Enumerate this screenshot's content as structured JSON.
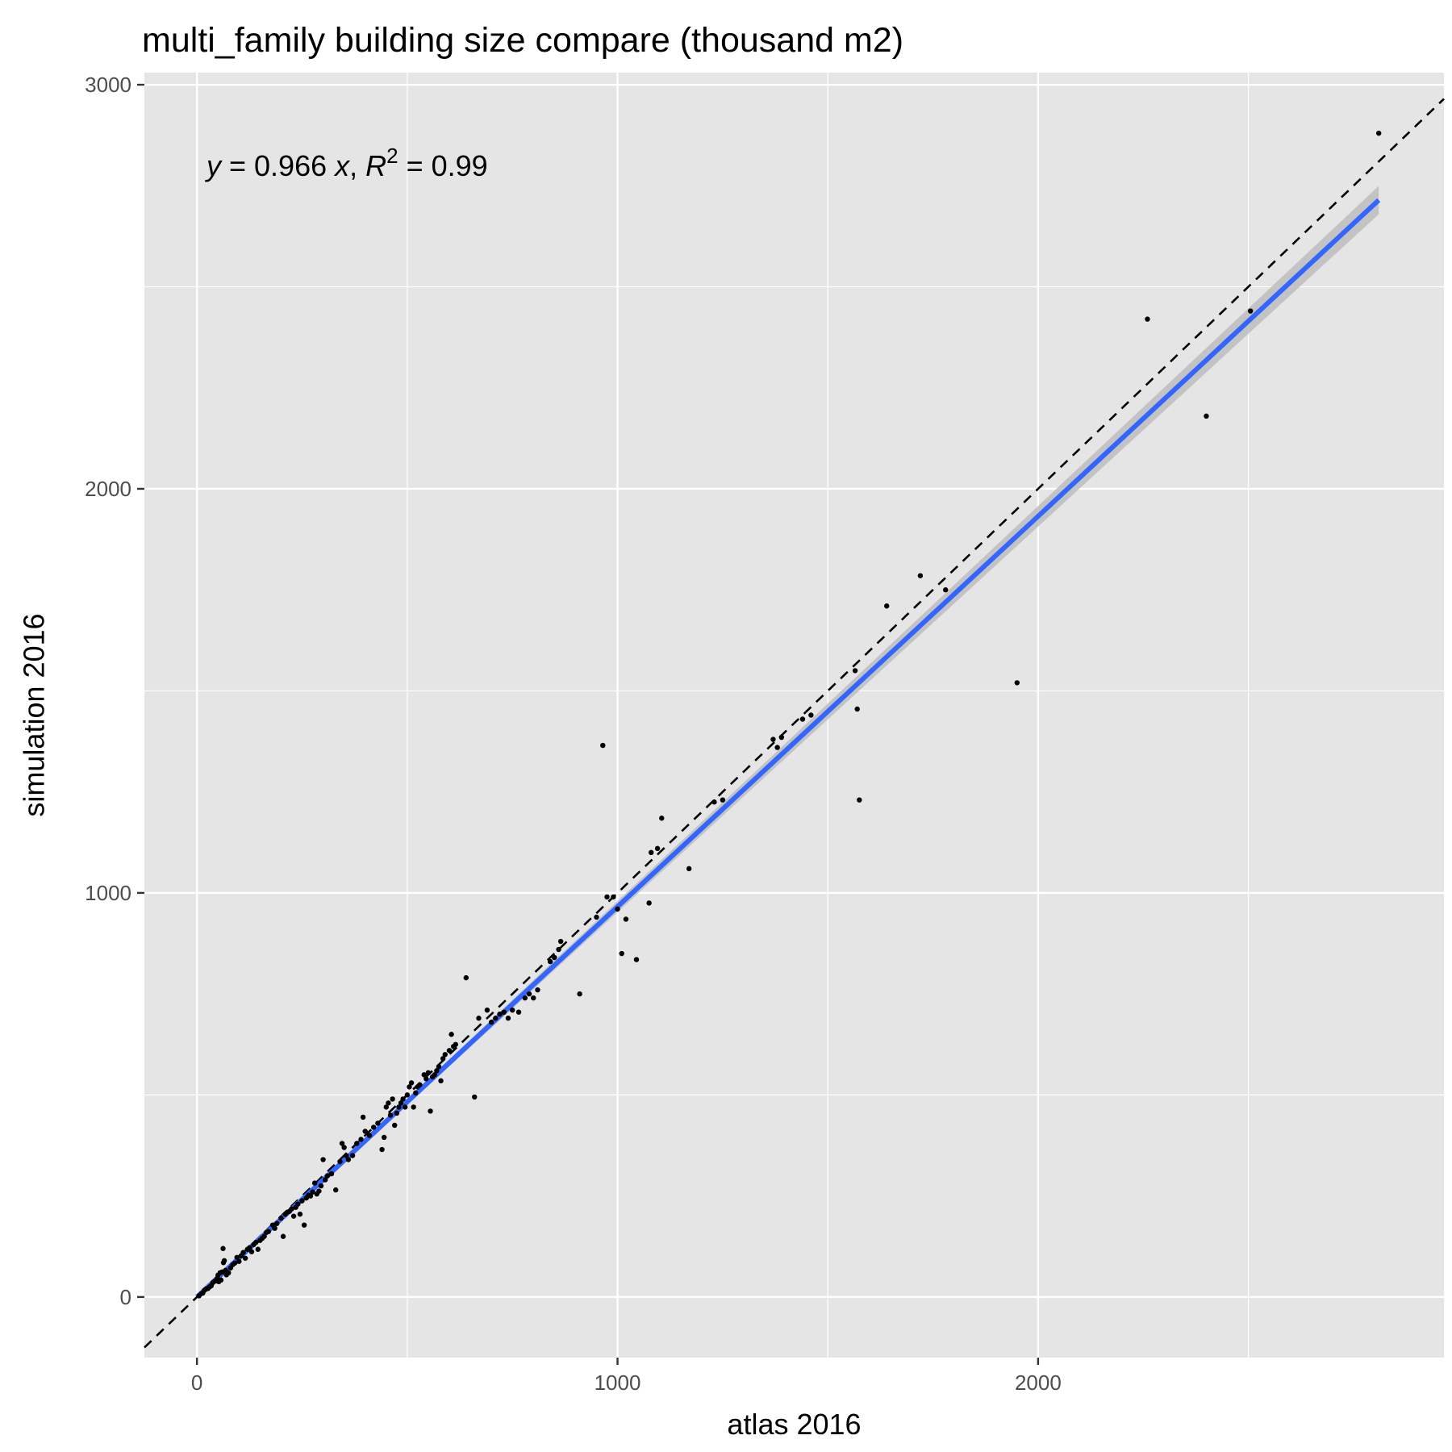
{
  "chart_data": {
    "type": "scatter",
    "title": "multi_family building size compare (thousand m2)",
    "xlabel": "atlas 2016",
    "ylabel": "simulation 2016",
    "xlim": [
      -125,
      2965
    ],
    "ylim": [
      -150,
      3030
    ],
    "x_ticks": [
      0,
      1000,
      2000
    ],
    "y_ticks": [
      0,
      1000,
      2000,
      3000
    ],
    "grid": true,
    "background": "#e5e5e5",
    "equation": {
      "y": "y",
      "eq_mid": " = 0.966 ",
      "x": "x",
      "sep": ", ",
      "R": "R",
      "sup": "2",
      "tail": " = 0.99"
    },
    "fit": {
      "slope": 0.966,
      "r2": 0.99,
      "x_range": [
        0,
        2810
      ],
      "band_halfwidth": [
        2,
        35
      ],
      "color": "#3366ff",
      "band_color": "#bdbdbd"
    },
    "reference_line": {
      "slope": 1,
      "style": "dashed",
      "color": "#000000"
    },
    "points": [
      [
        5,
        3
      ],
      [
        10,
        8
      ],
      [
        14,
        10
      ],
      [
        18,
        17
      ],
      [
        22,
        20
      ],
      [
        26,
        21
      ],
      [
        30,
        25
      ],
      [
        34,
        28
      ],
      [
        38,
        36
      ],
      [
        42,
        39
      ],
      [
        45,
        40
      ],
      [
        48,
        46
      ],
      [
        50,
        54
      ],
      [
        52,
        38
      ],
      [
        55,
        60
      ],
      [
        57,
        42
      ],
      [
        60,
        62
      ],
      [
        62,
        120
      ],
      [
        63,
        85
      ],
      [
        65,
        90
      ],
      [
        68,
        66
      ],
      [
        70,
        55
      ],
      [
        75,
        60
      ],
      [
        80,
        72
      ],
      [
        85,
        80
      ],
      [
        90,
        84
      ],
      [
        95,
        98
      ],
      [
        100,
        88
      ],
      [
        105,
        102
      ],
      [
        110,
        110
      ],
      [
        115,
        96
      ],
      [
        120,
        118
      ],
      [
        125,
        122
      ],
      [
        130,
        112
      ],
      [
        135,
        130
      ],
      [
        140,
        135
      ],
      [
        145,
        118
      ],
      [
        150,
        140
      ],
      [
        155,
        145
      ],
      [
        160,
        150
      ],
      [
        165,
        160
      ],
      [
        170,
        162
      ],
      [
        180,
        178
      ],
      [
        185,
        170
      ],
      [
        190,
        182
      ],
      [
        200,
        195
      ],
      [
        205,
        150
      ],
      [
        210,
        205
      ],
      [
        215,
        210
      ],
      [
        220,
        212
      ],
      [
        225,
        218
      ],
      [
        230,
        200
      ],
      [
        235,
        222
      ],
      [
        240,
        230
      ],
      [
        245,
        205
      ],
      [
        250,
        238
      ],
      [
        255,
        178
      ],
      [
        260,
        245
      ],
      [
        265,
        252
      ],
      [
        270,
        250
      ],
      [
        275,
        260
      ],
      [
        280,
        282
      ],
      [
        285,
        255
      ],
      [
        290,
        262
      ],
      [
        295,
        275
      ],
      [
        300,
        340
      ],
      [
        305,
        290
      ],
      [
        310,
        300
      ],
      [
        320,
        305
      ],
      [
        330,
        265
      ],
      [
        340,
        335
      ],
      [
        345,
        380
      ],
      [
        350,
        370
      ],
      [
        355,
        350
      ],
      [
        360,
        340
      ],
      [
        370,
        350
      ],
      [
        380,
        380
      ],
      [
        390,
        390
      ],
      [
        395,
        445
      ],
      [
        400,
        410
      ],
      [
        410,
        400
      ],
      [
        420,
        420
      ],
      [
        430,
        430
      ],
      [
        440,
        365
      ],
      [
        445,
        395
      ],
      [
        450,
        470
      ],
      [
        455,
        480
      ],
      [
        460,
        450
      ],
      [
        465,
        490
      ],
      [
        470,
        425
      ],
      [
        475,
        455
      ],
      [
        480,
        470
      ],
      [
        485,
        480
      ],
      [
        490,
        490
      ],
      [
        495,
        470
      ],
      [
        500,
        500
      ],
      [
        505,
        520
      ],
      [
        510,
        530
      ],
      [
        515,
        470
      ],
      [
        520,
        505
      ],
      [
        525,
        520
      ],
      [
        530,
        525
      ],
      [
        540,
        550
      ],
      [
        545,
        540
      ],
      [
        550,
        555
      ],
      [
        555,
        460
      ],
      [
        560,
        545
      ],
      [
        565,
        550
      ],
      [
        570,
        560
      ],
      [
        575,
        570
      ],
      [
        580,
        535
      ],
      [
        585,
        590
      ],
      [
        590,
        600
      ],
      [
        600,
        610
      ],
      [
        605,
        650
      ],
      [
        610,
        620
      ],
      [
        615,
        625
      ],
      [
        640,
        790
      ],
      [
        660,
        495
      ],
      [
        670,
        690
      ],
      [
        690,
        710
      ],
      [
        700,
        680
      ],
      [
        710,
        690
      ],
      [
        720,
        700
      ],
      [
        730,
        705
      ],
      [
        740,
        690
      ],
      [
        750,
        710
      ],
      [
        765,
        705
      ],
      [
        780,
        740
      ],
      [
        790,
        750
      ],
      [
        800,
        740
      ],
      [
        810,
        760
      ],
      [
        840,
        830
      ],
      [
        850,
        840
      ],
      [
        860,
        860
      ],
      [
        865,
        880
      ],
      [
        910,
        750
      ],
      [
        950,
        940
      ],
      [
        965,
        1365
      ],
      [
        975,
        990
      ],
      [
        990,
        990
      ],
      [
        1000,
        960
      ],
      [
        1010,
        850
      ],
      [
        1020,
        935
      ],
      [
        1045,
        835
      ],
      [
        1075,
        975
      ],
      [
        1080,
        1100
      ],
      [
        1095,
        1110
      ],
      [
        1105,
        1185
      ],
      [
        1170,
        1060
      ],
      [
        1230,
        1225
      ],
      [
        1250,
        1230
      ],
      [
        1370,
        1380
      ],
      [
        1380,
        1360
      ],
      [
        1390,
        1385
      ],
      [
        1440,
        1430
      ],
      [
        1460,
        1440
      ],
      [
        1565,
        1550
      ],
      [
        1570,
        1455
      ],
      [
        1575,
        1230
      ],
      [
        1640,
        1710
      ],
      [
        1720,
        1785
      ],
      [
        1780,
        1750
      ],
      [
        1950,
        1520
      ],
      [
        2260,
        2420
      ],
      [
        2400,
        2180
      ],
      [
        2505,
        2440
      ],
      [
        2810,
        2880
      ]
    ]
  }
}
